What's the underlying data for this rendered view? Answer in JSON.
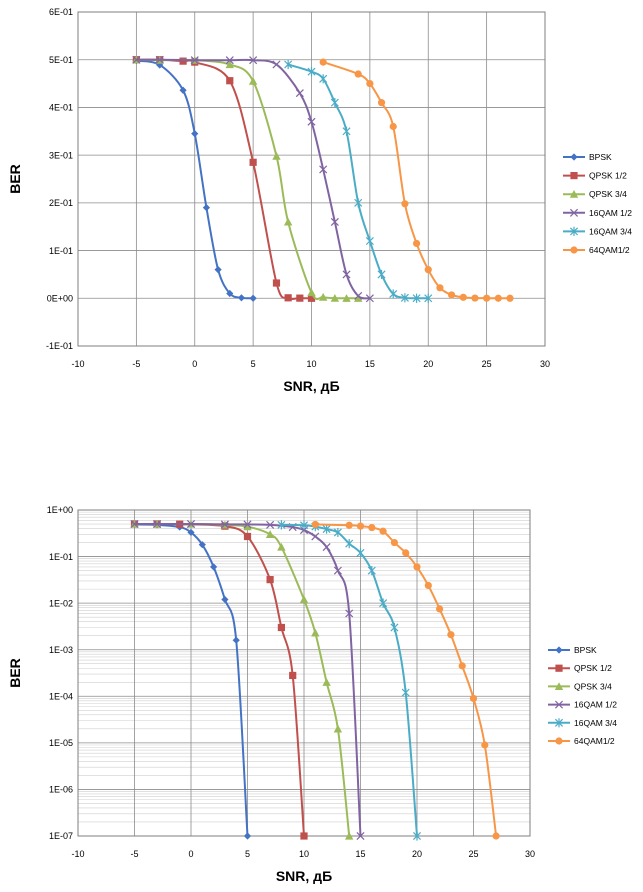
{
  "chart_data": [
    {
      "type": "line",
      "xlabel": "SNR, дБ",
      "ylabel": "BER",
      "xlim": [
        -10,
        30
      ],
      "xticks": [
        -10,
        -5,
        0,
        5,
        10,
        15,
        20,
        25,
        30
      ],
      "xtick_labels": [
        "-10",
        "-5",
        "0",
        "5",
        "10",
        "15",
        "20",
        "25",
        "30"
      ],
      "ylim": [
        -0.1,
        0.6
      ],
      "yticks": [
        -0.1,
        0,
        0.1,
        0.2,
        0.3,
        0.4,
        0.5,
        0.6
      ],
      "ytick_labels": [
        "-1E-01",
        "0E+00",
        "1E-01",
        "2E-01",
        "3E-01",
        "4E-01",
        "5E-01",
        "6E-01"
      ],
      "yscale": "linear",
      "grid": "major",
      "legend_position": "right",
      "series": [
        {
          "name": "BPSK",
          "color": "#4472C4",
          "marker": "diamond",
          "x": [
            -5,
            -3,
            -1,
            0,
            1,
            2,
            3,
            4,
            5
          ],
          "y": [
            0.498,
            0.489,
            0.436,
            0.345,
            0.19,
            0.06,
            0.01,
            0.001,
            0.0
          ]
        },
        {
          "name": "QPSK 1/2",
          "color": "#C0504D",
          "marker": "square",
          "x": [
            -5,
            -3,
            -1,
            0,
            3,
            5,
            7,
            8,
            9,
            10
          ],
          "y": [
            0.5,
            0.5,
            0.497,
            0.495,
            0.456,
            0.285,
            0.032,
            0.001,
            0.0003,
            0.0
          ]
        },
        {
          "name": "QPSK 3/4",
          "color": "#9BBB59",
          "marker": "triangle",
          "x": [
            -5,
            -3,
            0,
            3,
            5,
            7,
            8,
            10,
            11,
            12,
            13,
            14
          ],
          "y": [
            0.5,
            0.499,
            0.499,
            0.49,
            0.455,
            0.298,
            0.16,
            0.012,
            0.0025,
            0.0002,
            2e-05,
            0.0
          ]
        },
        {
          "name": "16QAM 1/2",
          "color": "#8064A2",
          "marker": "x",
          "x": [
            -5,
            -3,
            0,
            3,
            5,
            7,
            9,
            10,
            11,
            12,
            13,
            14,
            15
          ],
          "y": [
            0.5,
            0.5,
            0.499,
            0.499,
            0.499,
            0.49,
            0.43,
            0.37,
            0.27,
            0.16,
            0.05,
            0.005,
            0.0
          ]
        },
        {
          "name": "16QAM 3/4",
          "color": "#4BACC6",
          "marker": "star",
          "x": [
            8,
            10,
            11,
            12,
            13,
            14,
            15,
            16,
            17,
            18,
            19,
            20
          ],
          "y": [
            0.49,
            0.475,
            0.46,
            0.41,
            0.35,
            0.2,
            0.12,
            0.05,
            0.009,
            0.001,
            0.0001,
            0.0
          ]
        },
        {
          "name": "64QAM1/2",
          "color": "#F79646",
          "marker": "circle",
          "x": [
            11,
            14,
            15,
            16,
            17,
            18,
            19,
            20,
            21,
            22,
            23,
            24,
            25,
            26,
            27
          ],
          "y": [
            0.495,
            0.47,
            0.45,
            0.41,
            0.36,
            0.198,
            0.115,
            0.06,
            0.022,
            0.007,
            0.002,
            0.0005,
            0.0002,
            5e-05,
            0.0
          ]
        }
      ]
    },
    {
      "type": "line",
      "xlabel": "SNR, дБ",
      "ylabel": "BER",
      "xlim": [
        -10,
        30
      ],
      "xticks": [
        -10,
        -5,
        0,
        5,
        10,
        15,
        20,
        25,
        30
      ],
      "xtick_labels": [
        "-10",
        "-5",
        "0",
        "5",
        "10",
        "15",
        "20",
        "25",
        "30"
      ],
      "ylim": [
        1e-07,
        1
      ],
      "yticks": [
        1e-07,
        1e-06,
        1e-05,
        0.0001,
        0.001,
        0.01,
        0.1,
        1
      ],
      "ytick_labels": [
        "1E-07",
        "1E-06",
        "1E-05",
        "1E-04",
        "1E-03",
        "1E-02",
        "1E-01",
        "1E+00"
      ],
      "yscale": "log",
      "grid": "major and minor",
      "legend_position": "right",
      "series": [
        {
          "name": "BPSK",
          "color": "#4472C4",
          "marker": "diamond",
          "x": [
            -5,
            -3,
            -1,
            0,
            1,
            2,
            3,
            4,
            5
          ],
          "y": [
            0.49,
            0.48,
            0.43,
            0.33,
            0.18,
            0.06,
            0.012,
            0.0016,
            1e-07
          ]
        },
        {
          "name": "QPSK 1/2",
          "color": "#C0504D",
          "marker": "square",
          "x": [
            -5,
            -3,
            -1,
            3,
            5,
            7,
            8,
            9,
            10
          ],
          "y": [
            0.5,
            0.5,
            0.495,
            0.45,
            0.27,
            0.032,
            0.003,
            0.00028,
            1e-07
          ]
        },
        {
          "name": "QPSK 3/4",
          "color": "#9BBB59",
          "marker": "triangle",
          "x": [
            -5,
            -3,
            0,
            3,
            5,
            7,
            8,
            10,
            11,
            12,
            13,
            14
          ],
          "y": [
            0.5,
            0.5,
            0.5,
            0.48,
            0.44,
            0.3,
            0.16,
            0.012,
            0.0023,
            0.0002,
            2e-05,
            1e-07
          ]
        },
        {
          "name": "16QAM 1/2",
          "color": "#8064A2",
          "marker": "x",
          "x": [
            -5,
            -3,
            0,
            3,
            5,
            7,
            9,
            10,
            11,
            12,
            13,
            14,
            15
          ],
          "y": [
            0.5,
            0.5,
            0.5,
            0.49,
            0.49,
            0.48,
            0.43,
            0.37,
            0.27,
            0.16,
            0.05,
            0.006,
            1e-07
          ]
        },
        {
          "name": "16QAM 3/4",
          "color": "#4BACC6",
          "marker": "star",
          "x": [
            8,
            10,
            11,
            12,
            13,
            14,
            15,
            16,
            17,
            18,
            19,
            20
          ],
          "y": [
            0.48,
            0.47,
            0.44,
            0.39,
            0.33,
            0.19,
            0.12,
            0.05,
            0.01,
            0.003,
            0.00012,
            1e-07
          ]
        },
        {
          "name": "64QAM1/2",
          "color": "#F79646",
          "marker": "circle",
          "x": [
            11,
            14,
            15,
            16,
            17,
            18,
            19,
            20,
            21,
            22,
            23,
            24,
            25,
            26,
            27
          ],
          "y": [
            0.49,
            0.47,
            0.45,
            0.42,
            0.35,
            0.2,
            0.12,
            0.06,
            0.024,
            0.0075,
            0.0021,
            0.00045,
            9e-05,
            9e-06,
            1e-07
          ]
        }
      ]
    }
  ]
}
